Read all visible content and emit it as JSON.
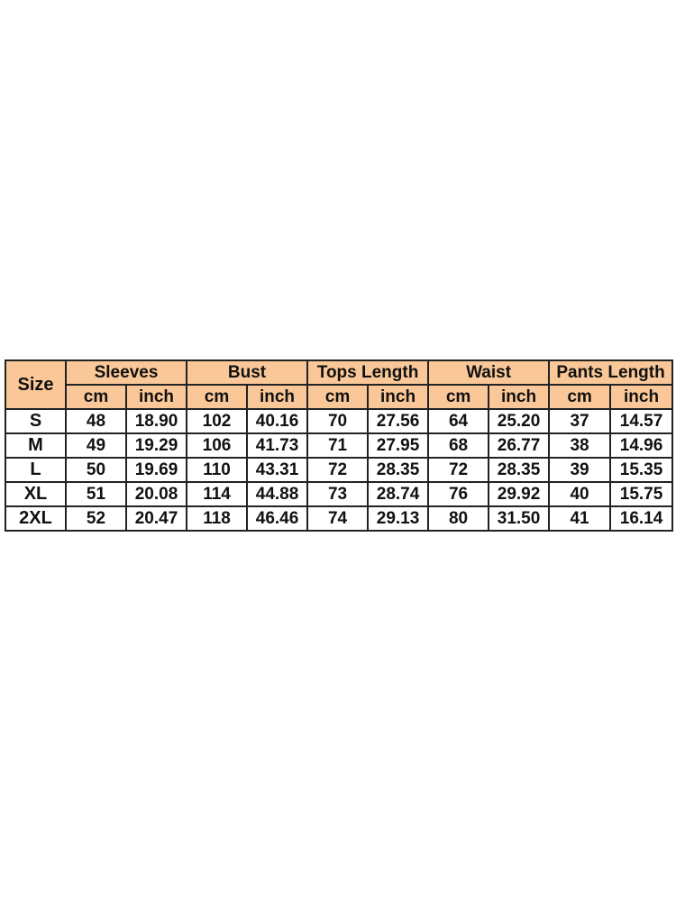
{
  "header_color": "#FAC898",
  "columns": {
    "size": "Size",
    "groups": [
      "Sleeves",
      "Bust",
      "Tops Length",
      "Waist",
      "Pants Length"
    ],
    "units": [
      "cm",
      "inch"
    ]
  },
  "rows": [
    [
      "S",
      "48",
      "18.90",
      "102",
      "40.16",
      "70",
      "27.56",
      "64",
      "25.20",
      "37",
      "14.57"
    ],
    [
      "M",
      "49",
      "19.29",
      "106",
      "41.73",
      "71",
      "27.95",
      "68",
      "26.77",
      "38",
      "14.96"
    ],
    [
      "L",
      "50",
      "19.69",
      "110",
      "43.31",
      "72",
      "28.35",
      "72",
      "28.35",
      "39",
      "15.35"
    ],
    [
      "XL",
      "51",
      "20.08",
      "114",
      "44.88",
      "73",
      "28.74",
      "76",
      "29.92",
      "40",
      "15.75"
    ],
    [
      "2XL",
      "52",
      "20.47",
      "118",
      "46.46",
      "74",
      "29.13",
      "80",
      "31.50",
      "41",
      "16.14"
    ]
  ]
}
